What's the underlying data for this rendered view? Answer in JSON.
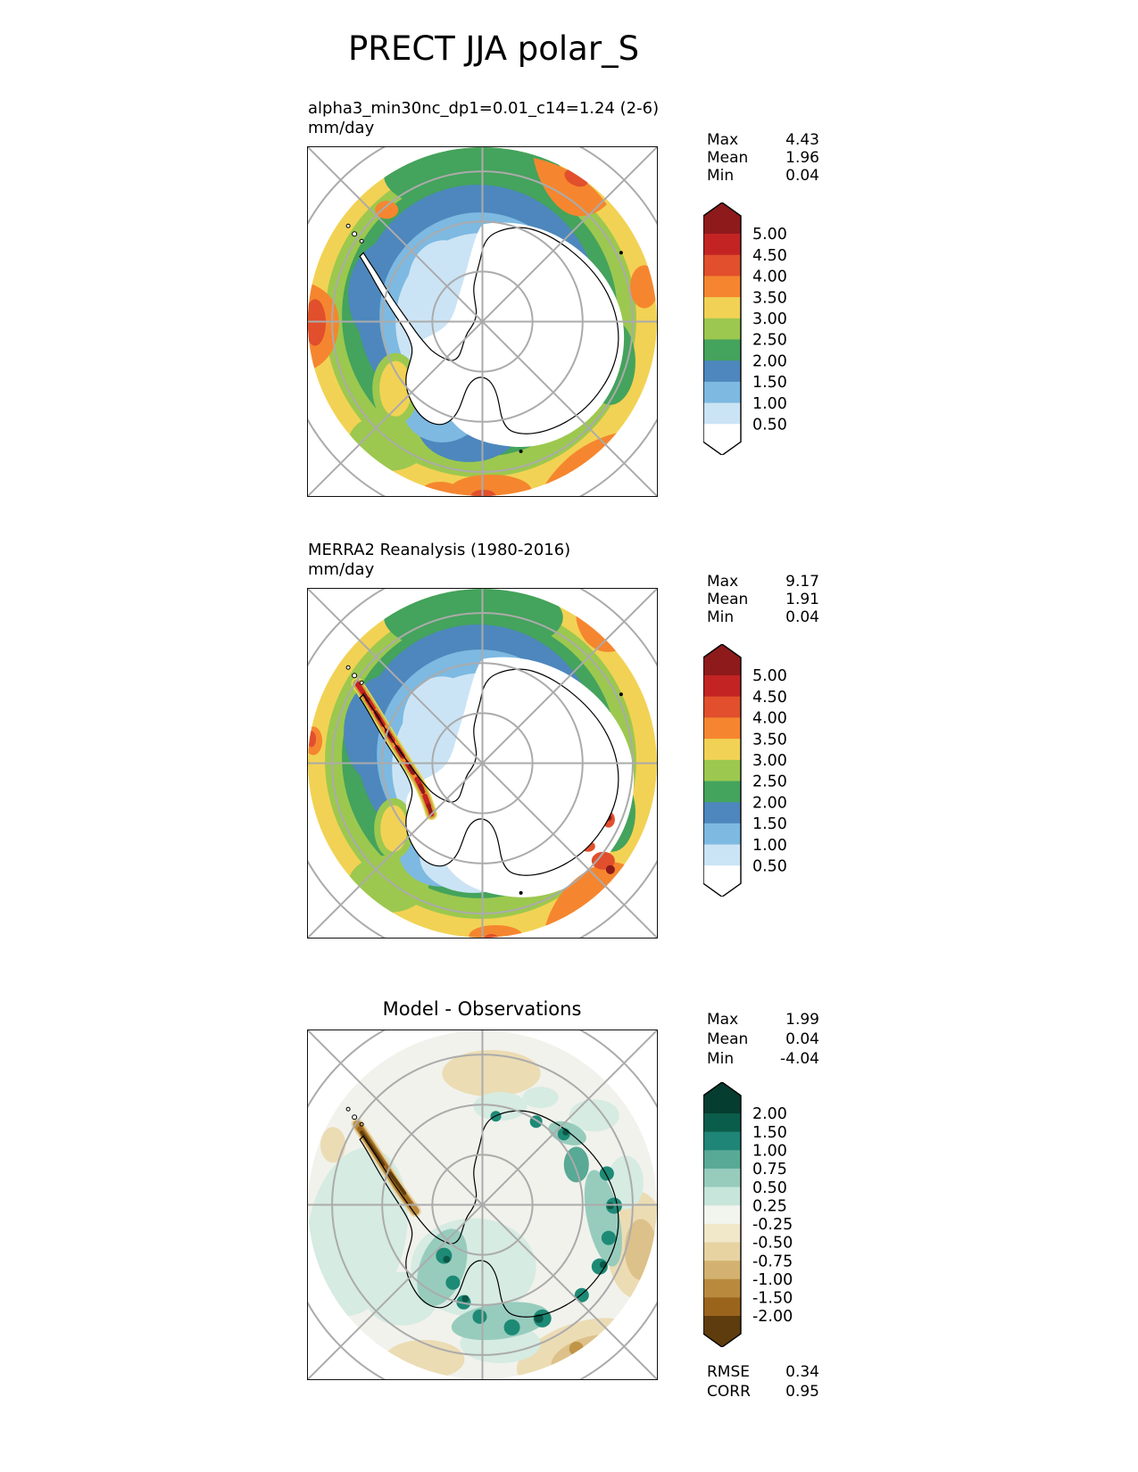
{
  "figure_title": "PRECT JJA polar_S",
  "panels": [
    {
      "id": "model",
      "title_line1": "alpha3_min30nc_dp1=0.01_c14=1.24 (2-6)",
      "title_line2": "mm/day",
      "stats": [
        {
          "label": "Max",
          "value": "4.43"
        },
        {
          "label": "Mean",
          "value": "1.96"
        },
        {
          "label": "Min",
          "value": "0.04"
        }
      ],
      "colorbar": {
        "tick_labels": [
          "5.00",
          "4.50",
          "4.00",
          "3.50",
          "3.00",
          "2.50",
          "2.00",
          "1.50",
          "1.00",
          "0.50"
        ],
        "segment_colors_top_to_bottom": [
          "#c32423",
          "#e14f2c",
          "#f5862f",
          "#f2d254",
          "#9cc84f",
          "#44a35c",
          "#4d87bd",
          "#7db9e1",
          "#cbe4f5"
        ],
        "extend_high_color": "#8e1a1c",
        "extend_low_color": "#ffffff"
      }
    },
    {
      "id": "reference",
      "title_line1": "MERRA2 Reanalysis (1980-2016)",
      "title_line2": "mm/day",
      "stats": [
        {
          "label": "Max",
          "value": "9.17"
        },
        {
          "label": "Mean",
          "value": "1.91"
        },
        {
          "label": "Min",
          "value": "0.04"
        }
      ],
      "colorbar": {
        "tick_labels": [
          "5.00",
          "4.50",
          "4.00",
          "3.50",
          "3.00",
          "2.50",
          "2.00",
          "1.50",
          "1.00",
          "0.50"
        ],
        "segment_colors_top_to_bottom": [
          "#c32423",
          "#e14f2c",
          "#f5862f",
          "#f2d254",
          "#9cc84f",
          "#44a35c",
          "#4d87bd",
          "#7db9e1",
          "#cbe4f5"
        ],
        "extend_high_color": "#8e1a1c",
        "extend_low_color": "#ffffff"
      }
    },
    {
      "id": "difference",
      "title": "Model - Observations",
      "stats": [
        {
          "label": "Max",
          "value": "1.99"
        },
        {
          "label": "Mean",
          "value": "0.04"
        },
        {
          "label": "Min",
          "value": "-4.04"
        }
      ],
      "colorbar": {
        "tick_labels": [
          "2.00",
          "1.50",
          "1.00",
          "0.75",
          "0.50",
          "0.25",
          "-0.25",
          "-0.50",
          "-0.75",
          "-1.00",
          "-1.50",
          "-2.00"
        ],
        "segment_colors_top_to_bottom": [
          "#0b5d4b",
          "#1f8577",
          "#58a996",
          "#97ccbd",
          "#c7e5da",
          "#f2f4ee",
          "#f1e7c9",
          "#e7d3a2",
          "#d3b271",
          "#b98a3e",
          "#9b641d"
        ],
        "extend_high_color": "#063d31",
        "extend_low_color": "#5f3c0d"
      },
      "metrics": [
        {
          "label": "RMSE",
          "value": "0.34"
        },
        {
          "label": "CORR",
          "value": "0.95"
        }
      ]
    }
  ],
  "chart_data": [
    {
      "type": "heatmap",
      "subtype": "filled_contour_polar_map",
      "projection": "south polar stereographic",
      "variable": "PRECT",
      "season": "JJA",
      "region": "polar_S",
      "units": "mm/day",
      "title": "alpha3_min30nc_dp1=0.01_c14=1.24 (2-6)",
      "stats": {
        "max": 4.43,
        "mean": 1.96,
        "min": 0.04
      },
      "contour_levels": [
        0.5,
        1.0,
        1.5,
        2.0,
        2.5,
        3.0,
        3.5,
        4.0,
        4.5,
        5.0
      ],
      "palette_low_to_high": [
        "#ffffff",
        "#cbe4f5",
        "#7db9e1",
        "#4d87bd",
        "#44a35c",
        "#9cc84f",
        "#f2d254",
        "#f5862f",
        "#e14f2c",
        "#c32423",
        "#8e1a1c"
      ],
      "gridlines": true,
      "legend_position": "right"
    },
    {
      "type": "heatmap",
      "subtype": "filled_contour_polar_map",
      "projection": "south polar stereographic",
      "variable": "PRECT",
      "season": "JJA",
      "region": "polar_S",
      "units": "mm/day",
      "title": "MERRA2 Reanalysis (1980-2016)",
      "stats": {
        "max": 9.17,
        "mean": 1.91,
        "min": 0.04
      },
      "contour_levels": [
        0.5,
        1.0,
        1.5,
        2.0,
        2.5,
        3.0,
        3.5,
        4.0,
        4.5,
        5.0
      ],
      "palette_low_to_high": [
        "#ffffff",
        "#cbe4f5",
        "#7db9e1",
        "#4d87bd",
        "#44a35c",
        "#9cc84f",
        "#f2d254",
        "#f5862f",
        "#e14f2c",
        "#c32423",
        "#8e1a1c"
      ],
      "gridlines": true,
      "legend_position": "right"
    },
    {
      "type": "heatmap",
      "subtype": "filled_contour_polar_map_difference",
      "projection": "south polar stereographic",
      "variable": "PRECT",
      "season": "JJA",
      "region": "polar_S",
      "units": "mm/day",
      "title": "Model - Observations",
      "stats": {
        "max": 1.99,
        "mean": 0.04,
        "min": -4.04,
        "rmse": 0.34,
        "corr": 0.95
      },
      "contour_levels": [
        -2.0,
        -1.5,
        -1.0,
        -0.75,
        -0.5,
        -0.25,
        0.25,
        0.5,
        0.75,
        1.0,
        1.5,
        2.0
      ],
      "palette_low_to_high": [
        "#5f3c0d",
        "#9b641d",
        "#b98a3e",
        "#d3b271",
        "#e7d3a2",
        "#f1e7c9",
        "#f2f4ee",
        "#c7e5da",
        "#97ccbd",
        "#58a996",
        "#1f8577",
        "#0b5d4b",
        "#063d31"
      ],
      "gridlines": true,
      "legend_position": "right"
    }
  ]
}
